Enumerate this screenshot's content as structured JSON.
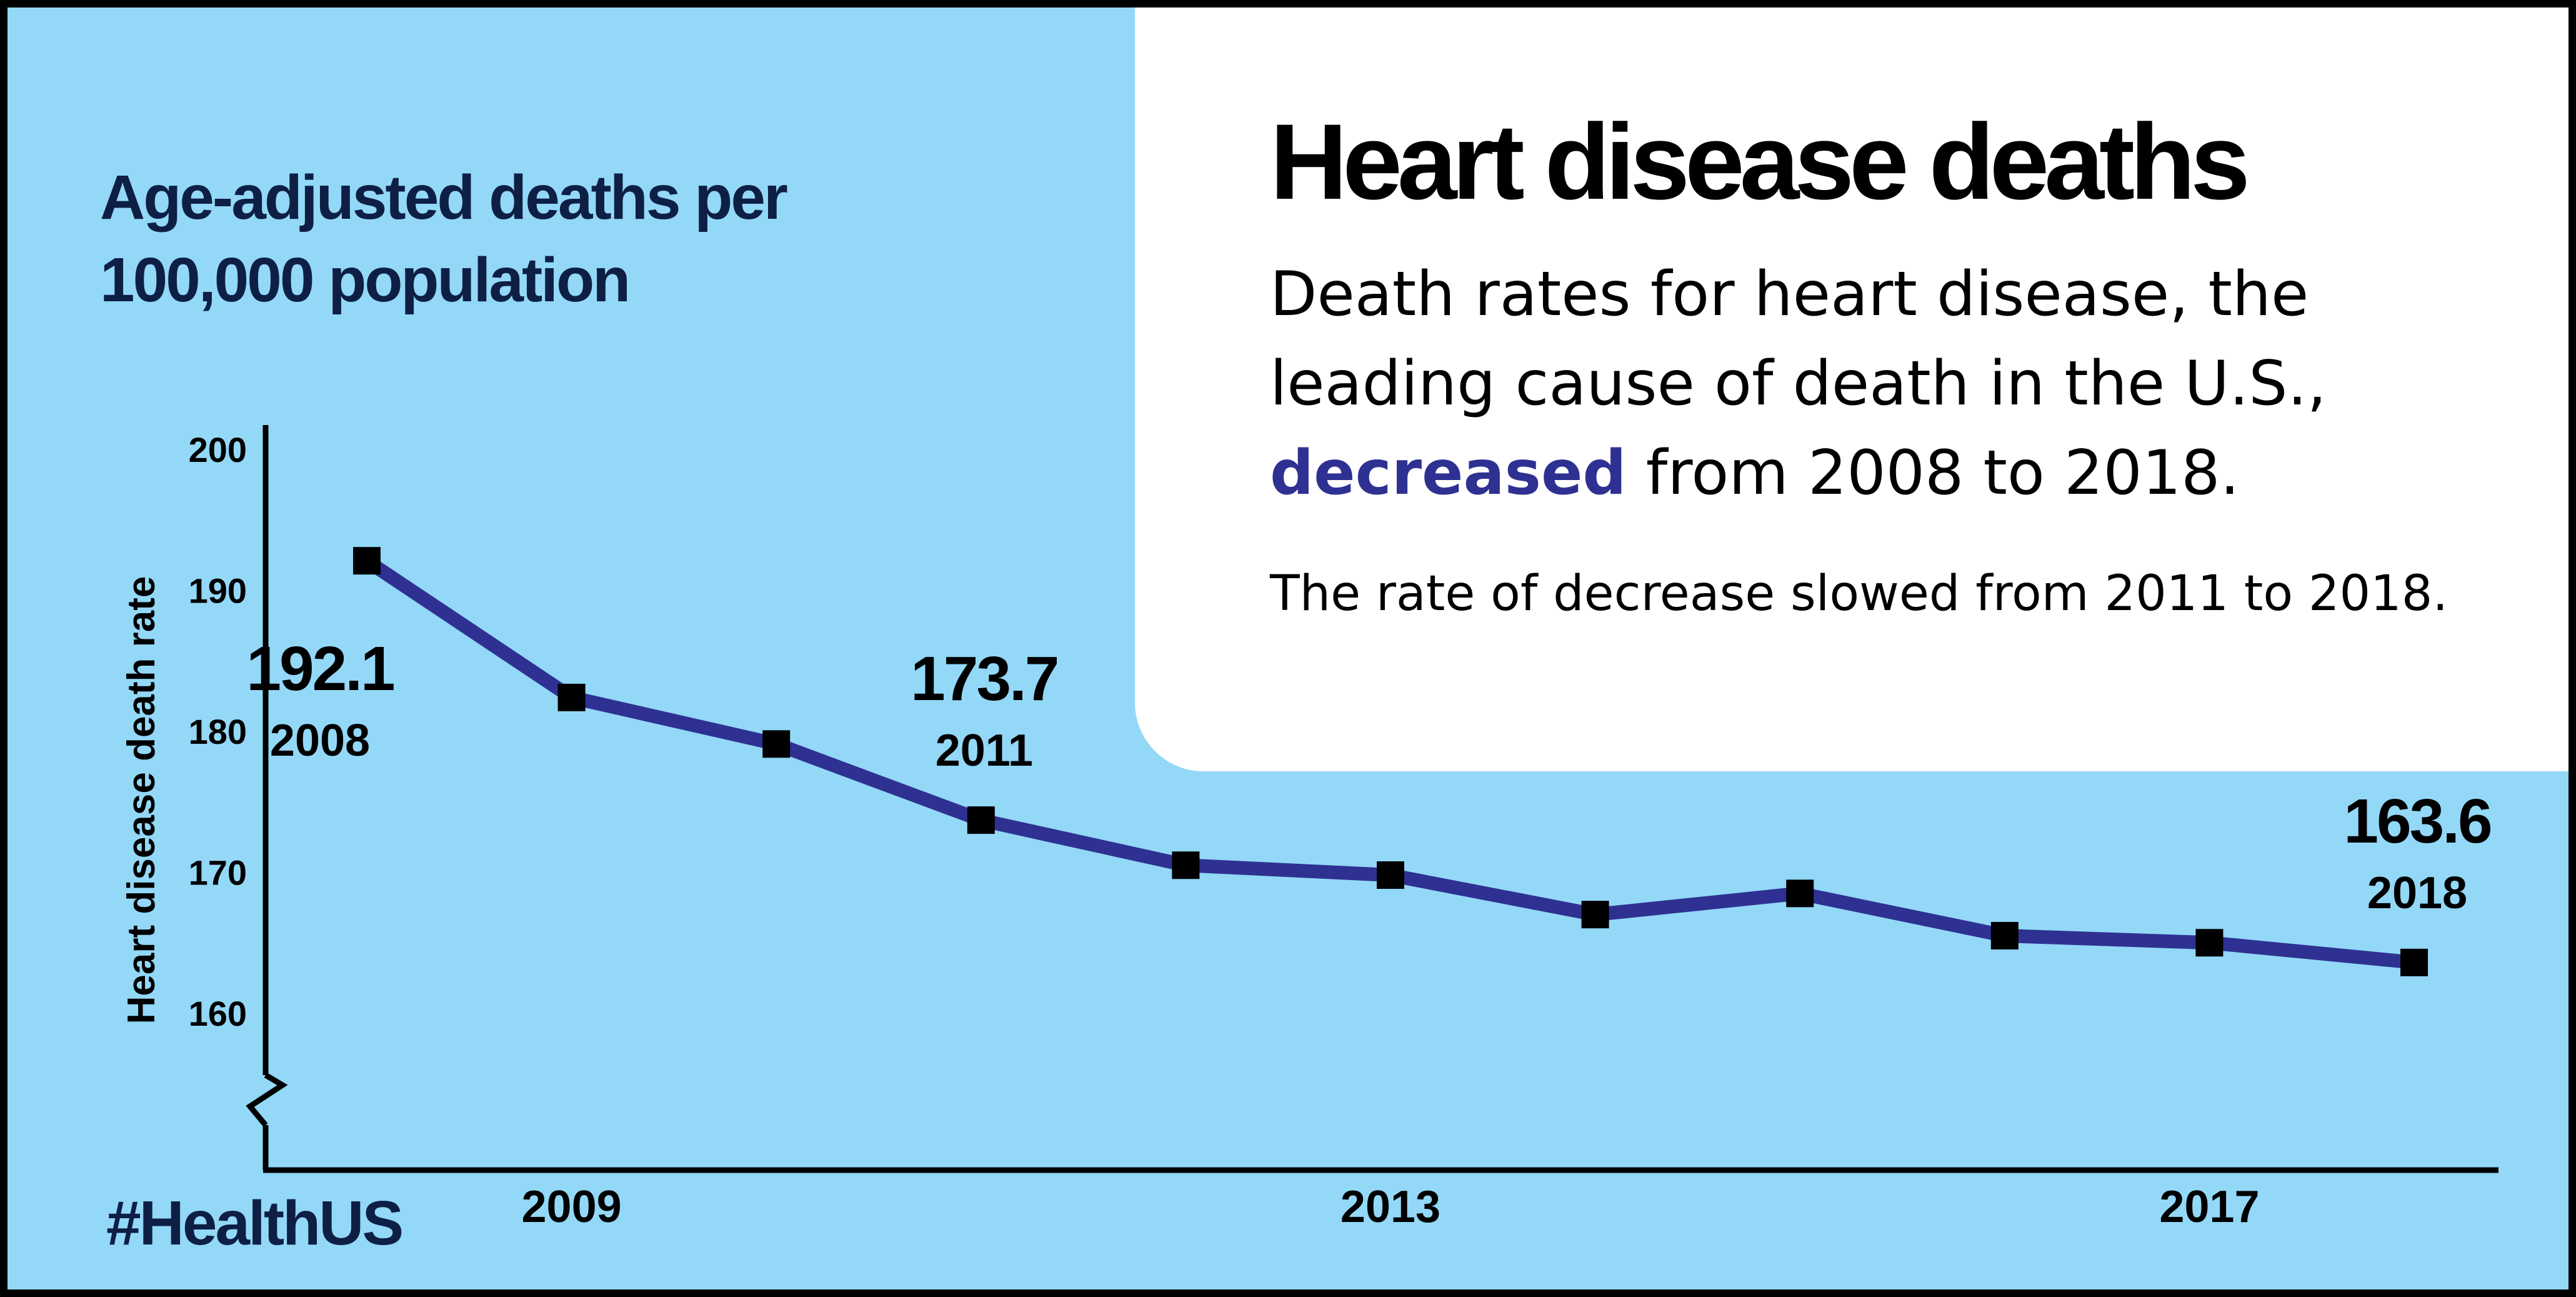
{
  "header": {
    "title": "Heart disease deaths",
    "lead_before": "Death rates for heart disease, the leading cause of death in the U.S., ",
    "lead_emphasis": "decreased",
    "lead_after": " from 2008 to 2018.",
    "note": "The rate of decrease slowed from 2011 to 2018."
  },
  "axis_title": "Age-adjusted deaths per 100,000 population",
  "hashtag": "#HealthUS",
  "colors": {
    "background": "#93d8f7",
    "panel": "#ffffff",
    "line": "#2e3192",
    "emphasis": "#2e3192",
    "marker": "#000000",
    "title_dark": "#0e1f45"
  },
  "chart_data": {
    "type": "line",
    "title": "Heart disease deaths",
    "ylabel": "Heart disease death rate",
    "xlabel": "",
    "x": [
      2008,
      2009,
      2010,
      2011,
      2012,
      2013,
      2014,
      2015,
      2016,
      2017,
      2018
    ],
    "series": [
      {
        "values": [
          192.1,
          182.4,
          179.1,
          173.7,
          170.5,
          169.8,
          167.0,
          168.5,
          165.5,
          165.0,
          163.6
        ]
      }
    ],
    "yticks": [
      200,
      190,
      180,
      170,
      160
    ],
    "xticks": [
      2009,
      2013,
      2017
    ],
    "ylim": [
      150,
      200
    ],
    "y_axis_break": true,
    "grid": false,
    "legend": "none",
    "annotations": [
      {
        "year": "2008",
        "value": "192.1"
      },
      {
        "year": "2011",
        "value": "173.7"
      },
      {
        "year": "2018",
        "value": "163.6"
      }
    ]
  }
}
